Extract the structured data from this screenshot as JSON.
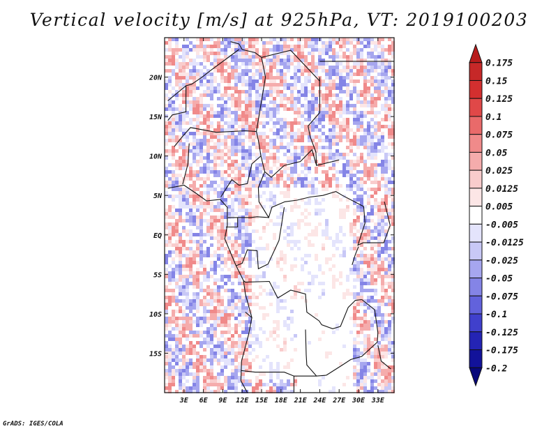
{
  "chart_data": {
    "type": "heatmap",
    "title": "Vertical velocity [m/s] at 925hPa, VT: 2019100203",
    "variable": "Vertical velocity",
    "units": "m/s",
    "level": "925hPa",
    "valid_time": "2019100203",
    "lon_range": [
      0,
      35.5
    ],
    "lat_range": [
      -20,
      25
    ],
    "x_ticks": [
      {
        "value": 3,
        "label": "3E"
      },
      {
        "value": 6,
        "label": "6E"
      },
      {
        "value": 9,
        "label": "9E"
      },
      {
        "value": 12,
        "label": "12E"
      },
      {
        "value": 15,
        "label": "15E"
      },
      {
        "value": 18,
        "label": "18E"
      },
      {
        "value": 21,
        "label": "21E"
      },
      {
        "value": 24,
        "label": "24E"
      },
      {
        "value": 27,
        "label": "27E"
      },
      {
        "value": 30,
        "label": "30E"
      },
      {
        "value": 33,
        "label": "33E"
      }
    ],
    "y_ticks": [
      {
        "value": 20,
        "label": "20N"
      },
      {
        "value": 15,
        "label": "15N"
      },
      {
        "value": 10,
        "label": "10N"
      },
      {
        "value": 5,
        "label": "5N"
      },
      {
        "value": 0,
        "label": "EQ"
      },
      {
        "value": -5,
        "label": "5S"
      },
      {
        "value": -10,
        "label": "10S"
      },
      {
        "value": -15,
        "label": "15S"
      }
    ],
    "colorbar": {
      "levels": [
        "0.175",
        "0.15",
        "0.125",
        "0.1",
        "0.075",
        "0.05",
        "0.025",
        "0.0125",
        "0.005",
        "-0.005",
        "-0.0125",
        "-0.025",
        "-0.05",
        "-0.075",
        "-0.1",
        "-0.125",
        "-0.175",
        "-0.2"
      ],
      "colors": [
        "#b71c1c",
        "#c62828",
        "#d32f2f",
        "#e04848",
        "#e96a6a",
        "#f08a8a",
        "#f5acac",
        "#f9cccc",
        "#fce6e6",
        "#ffffff",
        "#e4e4fc",
        "#c8c8f6",
        "#a6a6ef",
        "#8484e6",
        "#6262dc",
        "#4040cc",
        "#2424b4",
        "#12129a",
        "#08087a"
      ]
    }
  },
  "footer": {
    "credit": "GrADS: IGES/COLA"
  }
}
